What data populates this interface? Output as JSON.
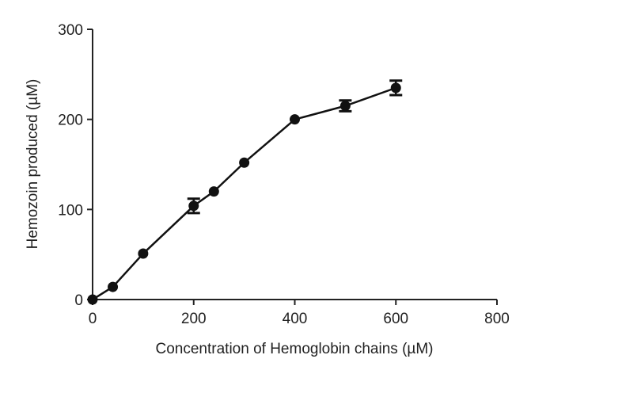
{
  "chart_data": {
    "type": "line",
    "title": "",
    "xlabel": "Concentration of Hemoglobin chains (µM)",
    "ylabel": "Hemozoin produced  (µM)",
    "xlim": [
      0,
      800
    ],
    "ylim": [
      0,
      300
    ],
    "xticks": [
      0,
      200,
      400,
      600,
      800
    ],
    "yticks": [
      0,
      100,
      200,
      300
    ],
    "xtick_labels": [
      "0",
      "200",
      "400",
      "600",
      "800"
    ],
    "ytick_labels": [
      "0",
      "100",
      "200",
      "300"
    ],
    "grid": false,
    "legend": "none",
    "series": [
      {
        "x": [
          0,
          40,
          100,
          200,
          240,
          300,
          400,
          500,
          600
        ],
        "y": [
          0,
          14,
          51,
          104,
          120,
          152,
          200,
          215,
          235
        ],
        "error": [
          0,
          0,
          0,
          8,
          0,
          0,
          0,
          6,
          8
        ]
      }
    ],
    "colors": {
      "line": "#111111",
      "marker": "#111111",
      "axis": "#222222"
    }
  }
}
